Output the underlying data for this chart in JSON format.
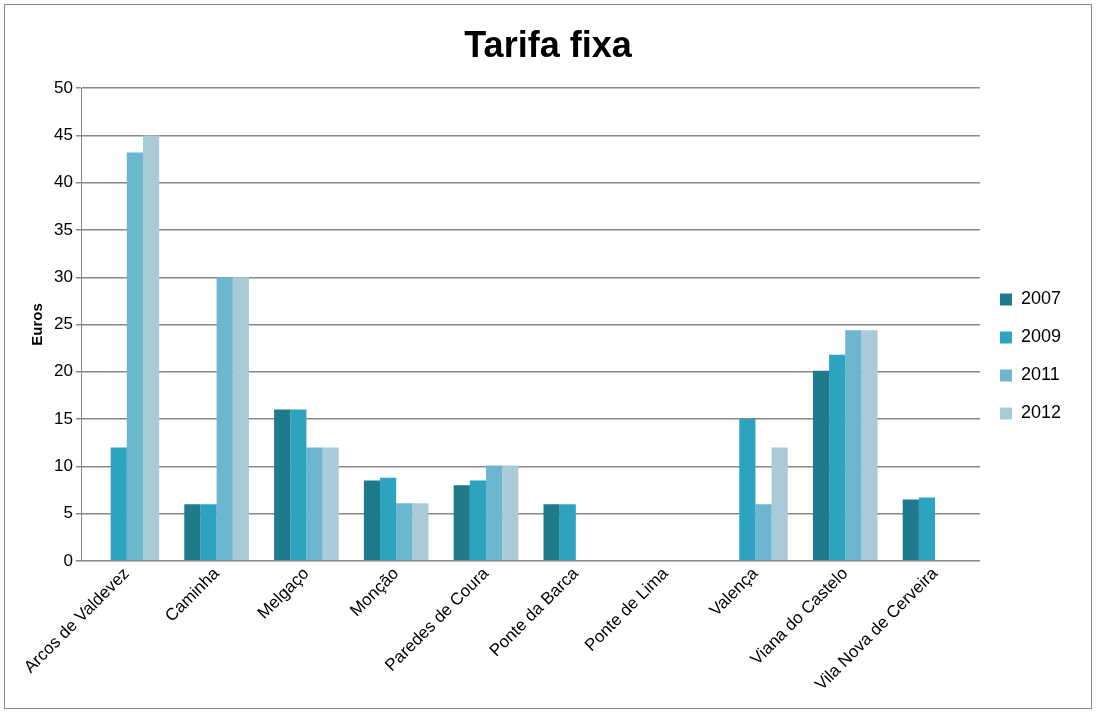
{
  "chart_data": {
    "type": "bar",
    "title": "Tarifa fixa",
    "ylabel": "Euros",
    "categories": [
      "Arcos de Valdevez",
      "Caminha",
      "Melgaço",
      "Monção",
      "Paredes de Coura",
      "Ponte da Barca",
      "Ponte de Lima",
      "Valença",
      "Viana do Castelo",
      "Vila Nova de Cerveira"
    ],
    "series": [
      {
        "name": "2007",
        "color": "#1f7a8c",
        "values": [
          null,
          6,
          16,
          8.5,
          8,
          6,
          null,
          null,
          20.1,
          6.5
        ]
      },
      {
        "name": "2009",
        "color": "#2ea3bf",
        "values": [
          12,
          6,
          16,
          8.8,
          8.5,
          6,
          null,
          15,
          21.8,
          6.7
        ]
      },
      {
        "name": "2011",
        "color": "#6cb6cf",
        "values": [
          43.2,
          30,
          12,
          6.1,
          10.1,
          null,
          null,
          6,
          24.4,
          null
        ]
      },
      {
        "name": "2012",
        "color": "#a9cbd8",
        "values": [
          45,
          30,
          12,
          6.1,
          10.1,
          null,
          null,
          12,
          24.4,
          null
        ]
      }
    ],
    "ylim": [
      0,
      50
    ],
    "yticks": [
      0,
      5,
      10,
      15,
      20,
      25,
      30,
      35,
      40,
      45,
      50
    ],
    "grid": "y",
    "legend": "right"
  }
}
